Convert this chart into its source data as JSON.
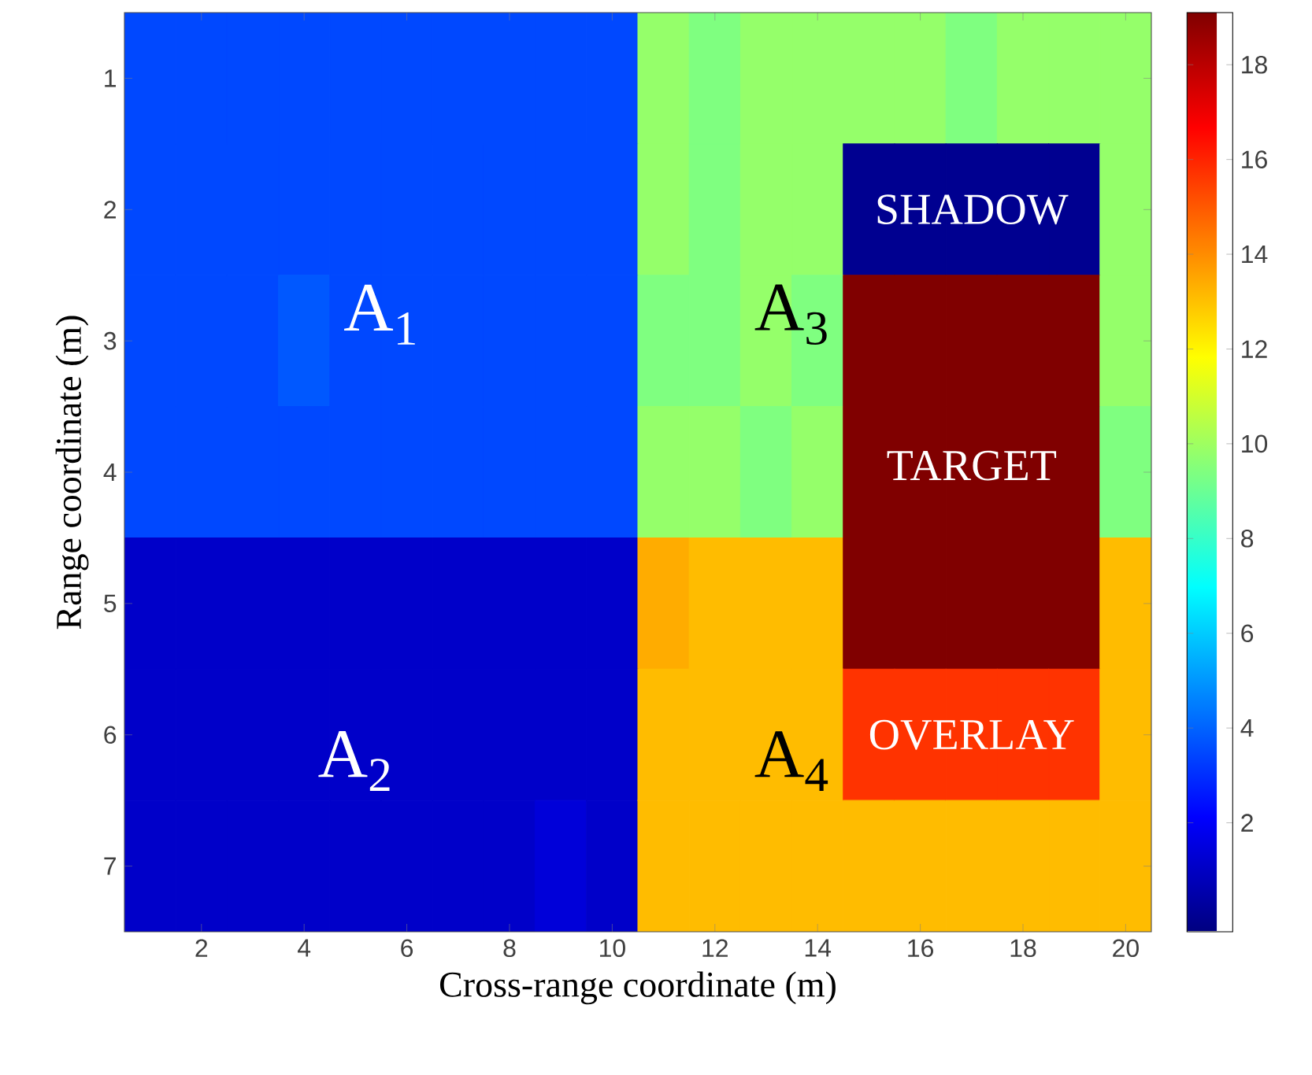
{
  "chart_data": {
    "type": "heatmap",
    "xlabel": "Cross-range coordinate (m)",
    "ylabel": "Range coordinate (m)",
    "x": [
      1,
      2,
      3,
      4,
      5,
      6,
      7,
      8,
      9,
      10,
      11,
      12,
      13,
      14,
      15,
      16,
      17,
      18,
      19,
      20
    ],
    "xlim": [
      0.5,
      20.5
    ],
    "xticks": [
      2,
      4,
      6,
      8,
      10,
      12,
      14,
      16,
      18,
      20
    ],
    "y_categories": [
      "1",
      "2",
      "3",
      "4",
      "5",
      "6",
      "7"
    ],
    "cells": [
      [
        3.5,
        3.5,
        3.5,
        3.5,
        3.5,
        3.5,
        3.5,
        3.5,
        3.5,
        3.5,
        9.8,
        9.4,
        9.8,
        9.8,
        9.8,
        9.8,
        9.4,
        9.8,
        9.8,
        9.8
      ],
      [
        3.5,
        3.5,
        3.5,
        3.5,
        3.5,
        3.5,
        3.5,
        3.5,
        3.5,
        3.5,
        9.8,
        9.4,
        9.8,
        9.8,
        0,
        0,
        0,
        0,
        0,
        9.8
      ],
      [
        3.5,
        3.5,
        3.5,
        3.8,
        3.5,
        3.5,
        3.5,
        3.5,
        3.5,
        3.5,
        9.4,
        9.4,
        9.8,
        9.4,
        19.1,
        19.1,
        19.1,
        19.1,
        19.1,
        9.8
      ],
      [
        3.5,
        3.5,
        3.5,
        3.5,
        3.5,
        3.5,
        3.5,
        3.5,
        3.5,
        3.5,
        9.8,
        9.8,
        9.4,
        9.8,
        19.1,
        19.1,
        19.1,
        19.1,
        19.1,
        9.4
      ],
      [
        1.1,
        1.1,
        1.1,
        1.1,
        1.1,
        1.1,
        1.1,
        1.1,
        1.1,
        1.1,
        13.4,
        13.1,
        13.1,
        13.1,
        19.1,
        19.1,
        19.1,
        19.1,
        19.1,
        13.1
      ],
      [
        1.1,
        1.1,
        1.1,
        1.1,
        1.1,
        1.1,
        1.1,
        1.1,
        1.1,
        1.1,
        13.1,
        13.1,
        13.1,
        13.1,
        15.7,
        15.7,
        15.7,
        15.7,
        15.7,
        13.1
      ],
      [
        1.1,
        1.1,
        1.1,
        1.1,
        1.1,
        1.1,
        1.1,
        1.1,
        1.4,
        1.1,
        13.1,
        13.1,
        13.1,
        13.1,
        13.1,
        13.1,
        13.1,
        13.1,
        13.1,
        13.1
      ]
    ],
    "clim": [
      -0.3,
      19.1
    ],
    "cticks": [
      2,
      4,
      6,
      8,
      10,
      12,
      14,
      16,
      18
    ],
    "annotations": [
      "A$_{1}$",
      "A$_{2}$",
      "A$_{3}$",
      "A$_{4}$",
      "SHADOW",
      "TARGET",
      "OVERLAY"
    ]
  }
}
